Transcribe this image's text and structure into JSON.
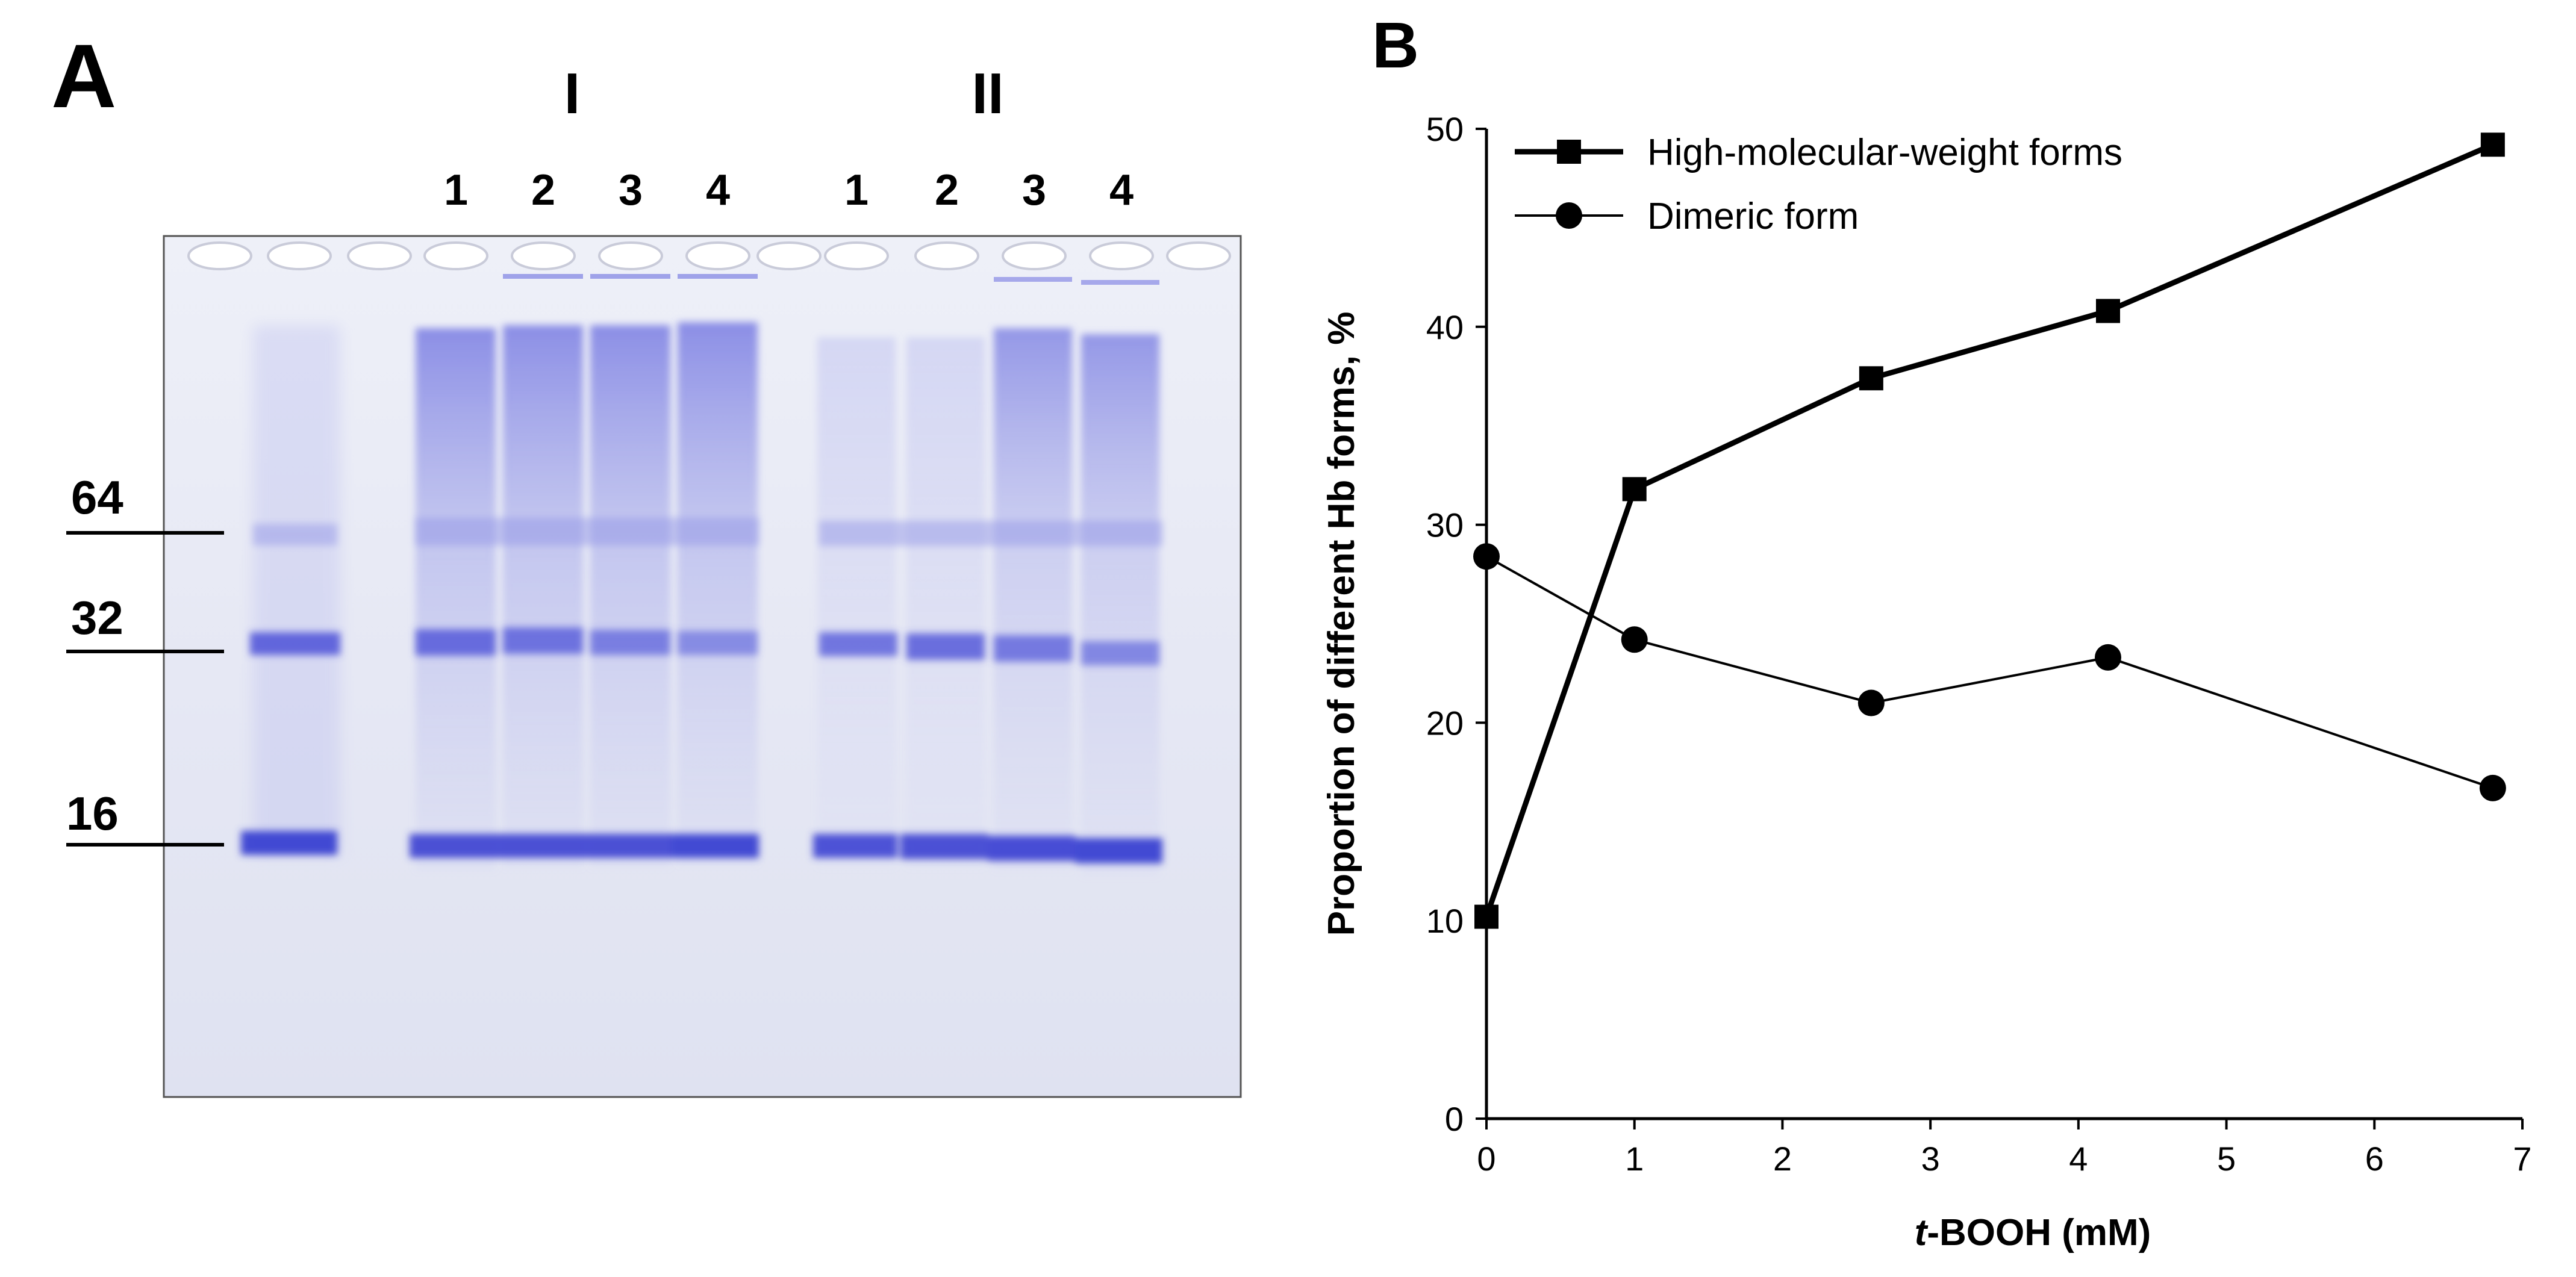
{
  "panel_a": {
    "letter": "A",
    "group_labels": [
      "I",
      "II"
    ],
    "lane_numbers": [
      "1",
      "2",
      "3",
      "4",
      "1",
      "2",
      "3",
      "4"
    ],
    "markers": [
      "64",
      "32",
      "16"
    ]
  },
  "panel_b": {
    "letter": "B"
  },
  "chart_data": {
    "type": "line",
    "xlabel_italic": "t",
    "xlabel_rest": "-BOOH (mM)",
    "ylabel": "Proportion of different Hb forms, %",
    "xlim": [
      0,
      7
    ],
    "ylim": [
      0,
      50
    ],
    "xticks": [
      "0",
      "1",
      "2",
      "3",
      "4",
      "5",
      "6",
      "7"
    ],
    "yticks": [
      "0",
      "10",
      "20",
      "30",
      "40",
      "50"
    ],
    "grid": false,
    "legend_position": "top-left",
    "series": [
      {
        "name": "High-molecular-weight forms",
        "marker": "square",
        "x": [
          0,
          1,
          2.6,
          4.2,
          6.8
        ],
        "y": [
          10.2,
          31.8,
          37.4,
          40.8,
          49.2
        ]
      },
      {
        "name": "Dimeric form",
        "marker": "circle",
        "x": [
          0,
          1,
          2.6,
          4.2,
          6.8
        ],
        "y": [
          28.4,
          24.2,
          21.0,
          23.3,
          16.7
        ]
      }
    ]
  }
}
